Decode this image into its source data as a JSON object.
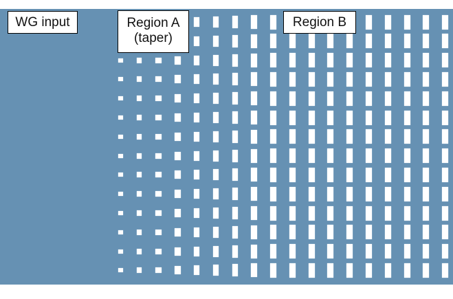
{
  "labels": {
    "wg_input": "WG input",
    "region_a_line1": "Region A",
    "region_a_line2": "(taper)",
    "region_b": "Region B"
  },
  "colors": {
    "slab": "#6691b3",
    "hole": "#ffffff"
  },
  "lattice": {
    "columns": 18,
    "rows": 14,
    "taper_columns": 9
  }
}
